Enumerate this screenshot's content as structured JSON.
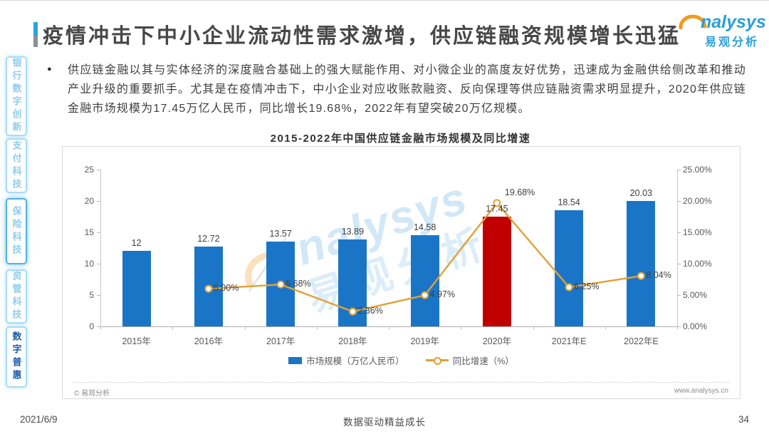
{
  "page": {
    "date": "2021/6/9",
    "footer_slogan": "数据驱动精益成长",
    "page_number": "34"
  },
  "header": {
    "title": "疫情冲击下中小企业流动性需求激增，供应链融资规模增长迅猛",
    "logo": {
      "brand_en": "nalysys",
      "brand_cn": "易观分析"
    }
  },
  "sidebar": {
    "items": [
      {
        "key": "banking-digital-innovation",
        "label": "银行数字创新",
        "state": "normal"
      },
      {
        "key": "payment-tech",
        "label": "支付科技",
        "state": "normal"
      },
      {
        "key": "insurance-tech",
        "label": "保险科技",
        "state": "outlined"
      },
      {
        "key": "asset-mgmt-tech",
        "label": "资管科技",
        "state": "normal"
      },
      {
        "key": "digital-inclusion",
        "label": "数字普惠",
        "state": "active"
      }
    ]
  },
  "body": {
    "bullet_text": "供应链金融以其与实体经济的深度融合基础上的强大赋能作用、对小微企业的高度友好优势，迅速成为金融供给侧改革和推动产业升级的重要抓手。尤其是在疫情冲击下，中小企业对应收账款融资、反向保理等供应链融资需求明显提升，2020年供应链金融市场规模为17.45万亿人民币，同比增长19.68%，2022年有望突破20万亿规模。"
  },
  "watermark": {
    "text_en": "nalysys",
    "text_cn": "易观分析"
  },
  "chart_data": {
    "type": "bar+line",
    "title": "2015-2022年中国供应链金融市场规模及同比增速",
    "categories": [
      "2015年",
      "2016年",
      "2017年",
      "2018年",
      "2019年",
      "2020年",
      "2021年E",
      "2022年E"
    ],
    "series": [
      {
        "name": "市场规模（万亿人民币）",
        "type": "bar",
        "axis": "left",
        "values": [
          12,
          12.72,
          13.57,
          13.89,
          14.58,
          17.45,
          18.54,
          20.03
        ],
        "value_labels": [
          "12",
          "12.72",
          "13.57",
          "13.89",
          "14.58",
          "17.45",
          "18.54",
          "20.03"
        ],
        "highlight_index": 5
      },
      {
        "name": "同比增速（%）",
        "type": "line",
        "axis": "right",
        "values": [
          null,
          6.0,
          6.68,
          2.36,
          4.97,
          19.68,
          6.25,
          8.04
        ],
        "value_labels": [
          "",
          "6.00%",
          "6.68%",
          "2.36%",
          "4.97%",
          "19.68%",
          "6.25%",
          "8.04%"
        ]
      }
    ],
    "left_axis": {
      "min": 0,
      "max": 25,
      "tick_labels": [
        "25",
        "20",
        "15",
        "10",
        "5",
        "0"
      ]
    },
    "right_axis": {
      "min": 0,
      "max": 25,
      "tick_labels": [
        "25.00%",
        "20.00%",
        "15.00%",
        "10.00%",
        "5.00%",
        "0.00%"
      ]
    },
    "colors": {
      "bar": "#1B75C6",
      "bar_highlight": "#C00000",
      "line": "#E2A037"
    },
    "grid": false,
    "legend_position": "bottom",
    "source_left": "© 易观分析",
    "source_right": "www.analysys.cn"
  }
}
